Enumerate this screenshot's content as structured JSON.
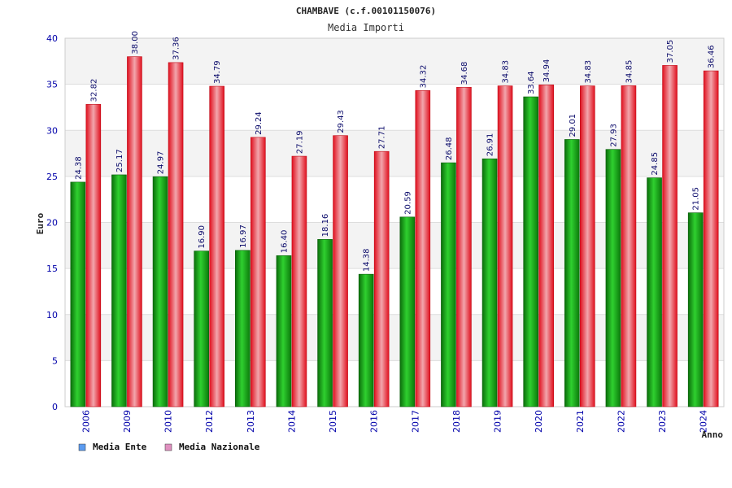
{
  "chart_data": {
    "type": "bar",
    "title": "CHAMBAVE (c.f.00101150076)",
    "subtitle": "Media Importi",
    "xlabel": "Anno",
    "ylabel": "Euro",
    "ylim": [
      0,
      40
    ],
    "yticks": [
      "0",
      "5",
      "10",
      "15",
      "20",
      "25",
      "30",
      "35",
      "40"
    ],
    "grid": true,
    "legend_position": "bottom-left",
    "categories": [
      "2006",
      "2009",
      "2010",
      "2012",
      "2013",
      "2014",
      "2015",
      "2016",
      "2017",
      "2018",
      "2019",
      "2020",
      "2021",
      "2022",
      "2023",
      "2024"
    ],
    "series": [
      {
        "name": "Media Ente",
        "color": "#1aa81a",
        "legend_color": "#5b9bf0",
        "values": [
          24.38,
          25.17,
          24.97,
          16.9,
          16.97,
          16.4,
          18.16,
          14.38,
          20.59,
          26.48,
          26.91,
          33.64,
          29.01,
          27.93,
          24.85,
          21.05
        ],
        "labels": [
          "24.38",
          "25.17",
          "24.97",
          "16.90",
          "16.97",
          "16.40",
          "18.16",
          "14.38",
          "20.59",
          "26.48",
          "26.91",
          "33.64",
          "29.01",
          "27.93",
          "24.85",
          "21.05"
        ]
      },
      {
        "name": "Media Nazionale",
        "color": "#e8202a",
        "legend_color": "#e090c0",
        "values": [
          32.82,
          38.0,
          37.36,
          34.79,
          29.24,
          27.19,
          29.43,
          27.71,
          34.32,
          34.68,
          34.83,
          34.94,
          34.83,
          34.85,
          37.05,
          36.46
        ],
        "labels": [
          "32.82",
          "38.00",
          "37.36",
          "34.79",
          "29.24",
          "27.19",
          "29.43",
          "27.71",
          "34.32",
          "34.68",
          "34.83",
          "34.94",
          "34.83",
          "34.85",
          "37.05",
          "36.46"
        ]
      }
    ]
  }
}
